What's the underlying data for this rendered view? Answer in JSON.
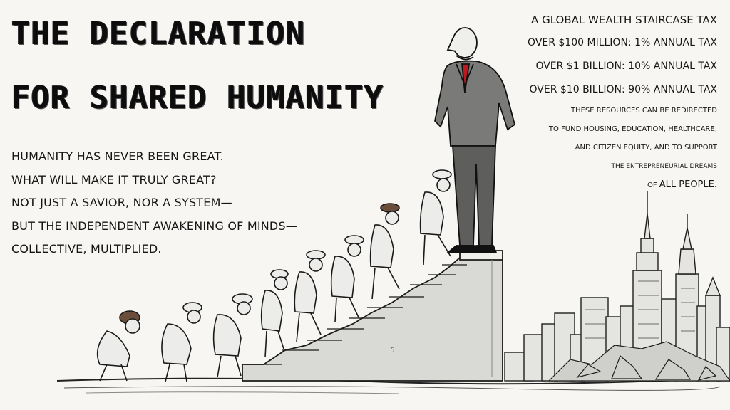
{
  "title": {
    "line1": "THE DECLARATION",
    "line2": "FOR SHARED HUMANITY"
  },
  "manifesto": {
    "lines": [
      "HUMANITY HAS NEVER BEEN GREAT.",
      "WHAT WILL MAKE IT TRULY GREAT?",
      "NOT JUST A SAVIOR, NOR A SYSTEM—",
      "BUT THE INDEPENDENT AWAKENING OF MINDS—",
      "COLLECTIVE, MULTIPLIED."
    ]
  },
  "tax_proposal": {
    "heading": "A GLOBAL WEALTH STAIRCASE TAX",
    "tiers": [
      "OVER $100 MILLION: 1% ANNUAL TAX",
      "OVER $1 BILLION: 10% ANNUAL TAX",
      "OVER $10 BILLION: 90% ANNUAL TAX"
    ],
    "notes": [
      "THESE RESOURCES CAN BE REDIRECTED",
      "TO FUND HOUSING, EDUCATION, HEALTHCARE,",
      "AND CITIZEN EQUITY, AND TO SUPPORT",
      "THE ENTREPRENEURIAL DREAMS"
    ],
    "closing_prefix": "OF ",
    "closing_emphasis": "ALL PEOPLE."
  },
  "colors": {
    "paper": "#f7f6f2",
    "ink": "#141414",
    "tie": "#c0181e",
    "stone": "#d9d9d6"
  }
}
